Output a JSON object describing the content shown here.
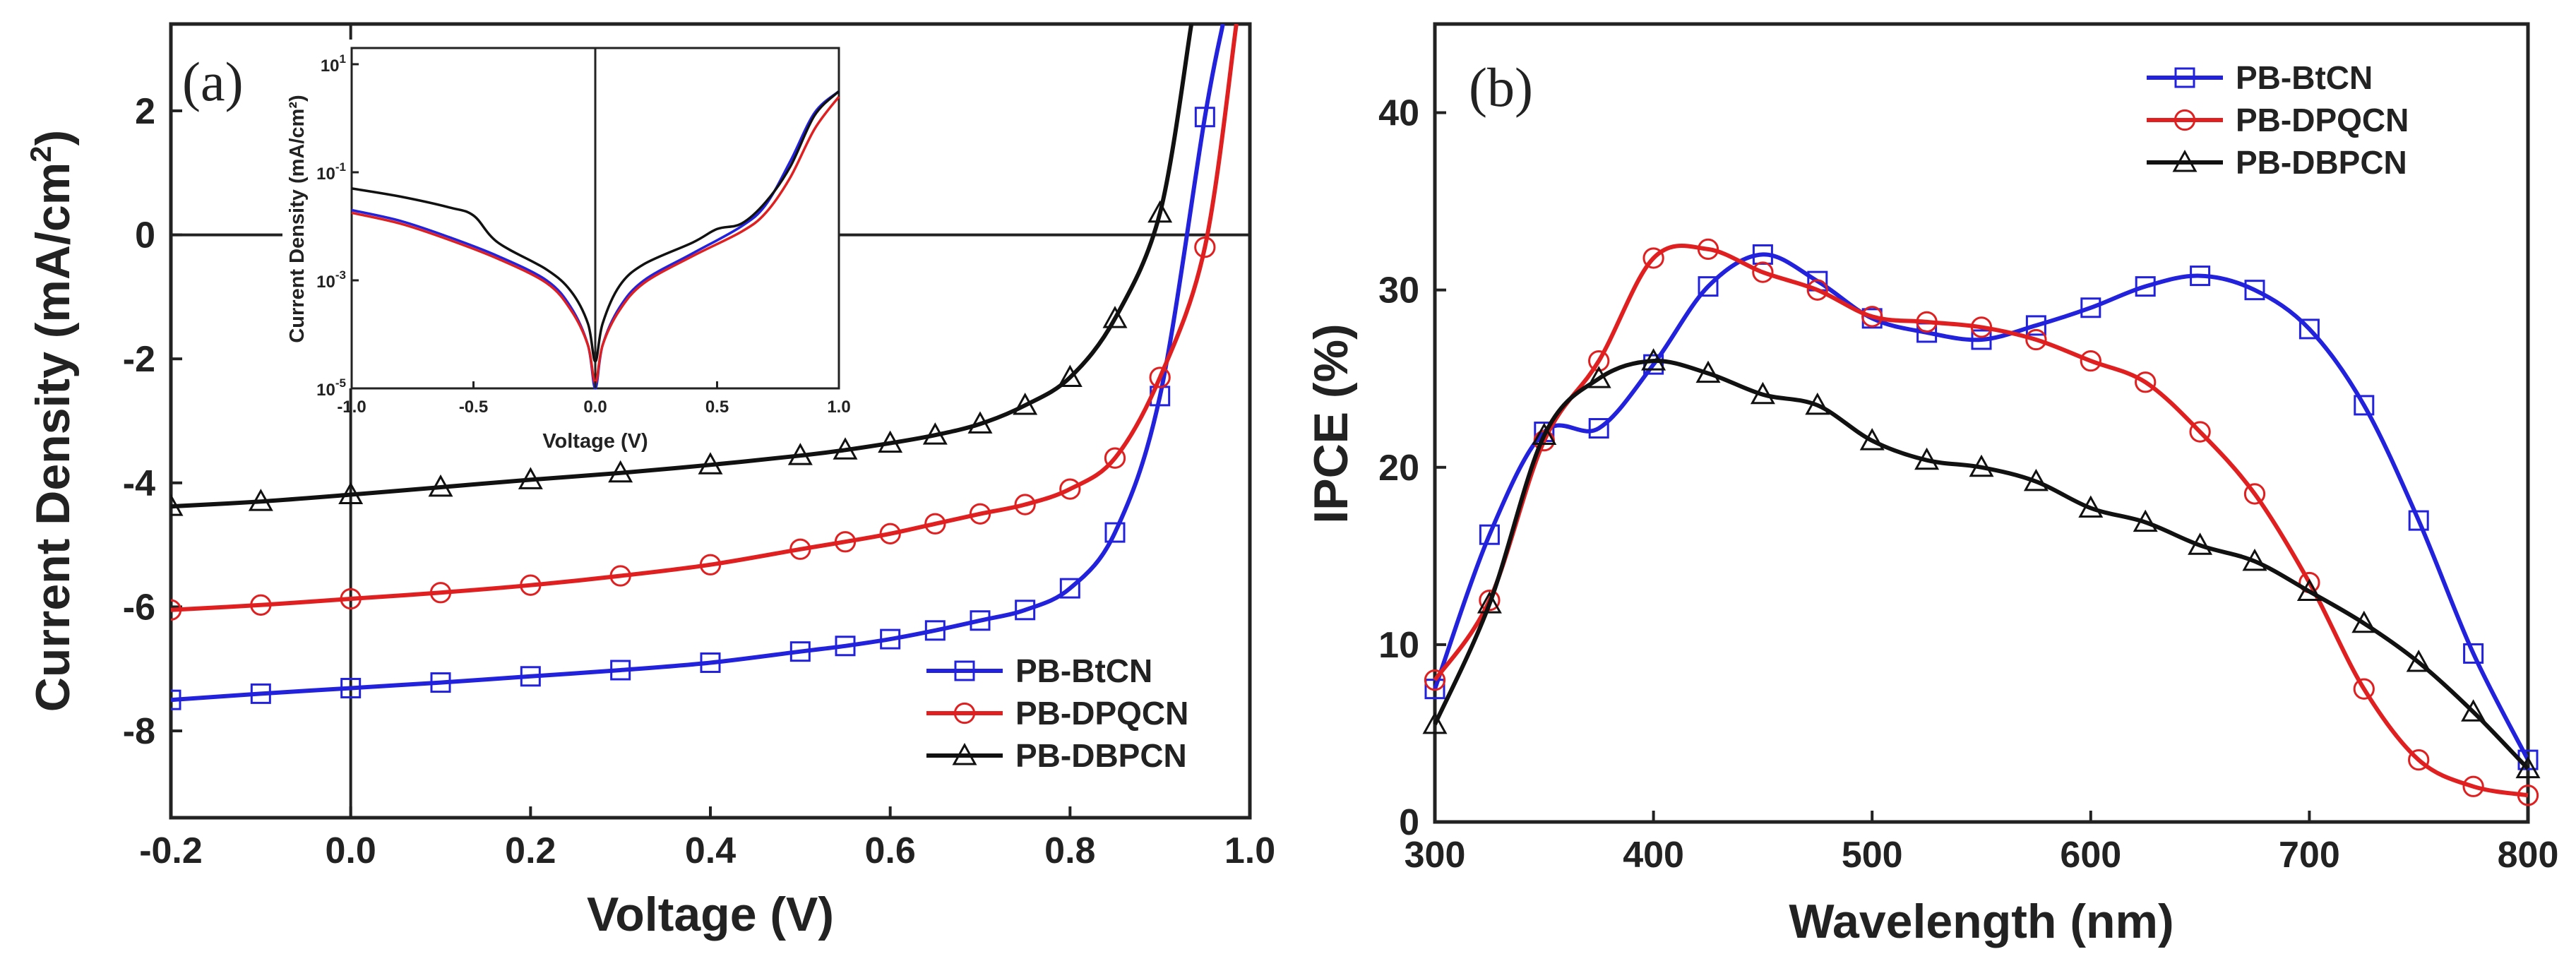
{
  "chart_data": [
    {
      "type": "line",
      "panel_label": "(a)",
      "xlabel": "Voltage (V)",
      "ylabel_main": "Current Density (mA/cm",
      "ylabel_sup": "2",
      "ylabel_end": ")",
      "xlim": [
        -0.2,
        1.0
      ],
      "ylim": [
        -9.4,
        3.4
      ],
      "xticks": [
        -0.2,
        0.0,
        0.2,
        0.4,
        0.6,
        0.8,
        1.0
      ],
      "xtick_labels": [
        "-0.2",
        "0.0",
        "0.2",
        "0.4",
        "0.6",
        "0.8",
        "1.0"
      ],
      "yticks": [
        -8,
        -6,
        -4,
        -2,
        0,
        2
      ],
      "ytick_labels": [
        "-8",
        "-6",
        "-4",
        "-2",
        "0",
        "2"
      ],
      "legend_position": "bottom-right",
      "series": [
        {
          "name": "PB-BtCN",
          "color": "#2222dd",
          "marker": "square",
          "x": [
            -0.2,
            -0.1,
            0,
            0.1,
            0.2,
            0.3,
            0.4,
            0.5,
            0.55,
            0.6,
            0.65,
            0.7,
            0.75,
            0.8,
            0.85,
            0.9,
            0.95,
            0.97
          ],
          "y": [
            -7.5,
            -7.4,
            -7.31,
            -7.22,
            -7.12,
            -7.02,
            -6.9,
            -6.72,
            -6.63,
            -6.52,
            -6.38,
            -6.22,
            -6.05,
            -5.7,
            -4.8,
            -2.6,
            1.9,
            3.4
          ]
        },
        {
          "name": "PB-DPQCN",
          "color": "#e02020",
          "marker": "circle",
          "x": [
            -0.2,
            -0.1,
            0,
            0.1,
            0.2,
            0.3,
            0.4,
            0.5,
            0.55,
            0.6,
            0.65,
            0.7,
            0.75,
            0.8,
            0.85,
            0.9,
            0.95,
            0.985
          ],
          "y": [
            -6.05,
            -5.97,
            -5.87,
            -5.77,
            -5.65,
            -5.5,
            -5.32,
            -5.07,
            -4.95,
            -4.82,
            -4.66,
            -4.5,
            -4.35,
            -4.1,
            -3.6,
            -2.3,
            -0.2,
            3.4
          ]
        },
        {
          "name": "PB-DBPCN",
          "color": "#111111",
          "marker": "triangle",
          "x": [
            -0.2,
            -0.1,
            0,
            0.1,
            0.2,
            0.3,
            0.4,
            0.5,
            0.55,
            0.6,
            0.65,
            0.7,
            0.75,
            0.8,
            0.85,
            0.9,
            0.935
          ],
          "y": [
            -4.38,
            -4.3,
            -4.19,
            -4.07,
            -3.95,
            -3.84,
            -3.71,
            -3.56,
            -3.47,
            -3.36,
            -3.23,
            -3.05,
            -2.75,
            -2.3,
            -1.35,
            0.35,
            3.4
          ]
        }
      ],
      "inset": {
        "type": "line",
        "xlabel": "Voltage (V)",
        "ylabel": "Current Density (mA/cm²)",
        "yscale": "log",
        "xlim": [
          -1.0,
          1.0
        ],
        "ylim_exp": [
          -5,
          1.3
        ],
        "xtick_labels": [
          "-1.0",
          "-0.5",
          "0.0",
          "0.5",
          "1.0"
        ],
        "ytick_labels": [
          {
            "base": "10",
            "exp": "1"
          },
          {
            "base": "10",
            "exp": "-1"
          },
          {
            "base": "10",
            "exp": "-3"
          },
          {
            "base": "10",
            "exp": "-5"
          }
        ],
        "ytick_exps": [
          1,
          -1,
          -3,
          -5
        ],
        "series": [
          {
            "name": "PB-BtCN",
            "color": "#2222dd",
            "x": [
              -1.0,
              -0.8,
              -0.6,
              -0.4,
              -0.2,
              -0.1,
              -0.03,
              0,
              0.03,
              0.1,
              0.2,
              0.4,
              0.6,
              0.7,
              0.8,
              0.9,
              1.0
            ],
            "log10y": [
              -1.7,
              -1.9,
              -2.2,
              -2.55,
              -3.0,
              -3.5,
              -4.2,
              -5.0,
              -4.2,
              -3.5,
              -3.0,
              -2.5,
              -2.0,
              -1.6,
              -0.8,
              0.1,
              0.5
            ]
          },
          {
            "name": "PB-DPQCN",
            "color": "#e02020",
            "x": [
              -1.0,
              -0.8,
              -0.6,
              -0.4,
              -0.2,
              -0.1,
              -0.03,
              0,
              0.03,
              0.1,
              0.2,
              0.4,
              0.6,
              0.7,
              0.8,
              0.9,
              1.0
            ],
            "log10y": [
              -1.75,
              -1.95,
              -2.25,
              -2.6,
              -3.05,
              -3.55,
              -4.2,
              -4.9,
              -4.2,
              -3.55,
              -3.05,
              -2.55,
              -2.1,
              -1.75,
              -1.1,
              -0.2,
              0.4
            ]
          },
          {
            "name": "PB-DBPCN",
            "color": "#111111",
            "x": [
              -1.0,
              -0.8,
              -0.6,
              -0.5,
              -0.4,
              -0.2,
              -0.1,
              -0.03,
              0,
              0.03,
              0.1,
              0.2,
              0.4,
              0.5,
              0.6,
              0.7,
              0.8,
              0.9,
              1.0
            ],
            "log10y": [
              -1.3,
              -1.45,
              -1.65,
              -1.8,
              -2.3,
              -2.8,
              -3.2,
              -3.8,
              -4.5,
              -3.8,
              -3.1,
              -2.7,
              -2.3,
              -2.05,
              -1.95,
              -1.55,
              -0.9,
              0.05,
              0.5
            ]
          }
        ]
      }
    },
    {
      "type": "line",
      "panel_label": "(b)",
      "xlabel": "Wavelength (nm)",
      "ylabel": "IPCE (%)",
      "xlim": [
        300,
        800
      ],
      "ylim": [
        0,
        45
      ],
      "xticks": [
        300,
        400,
        500,
        600,
        700,
        800
      ],
      "xtick_labels": [
        "300",
        "400",
        "500",
        "600",
        "700",
        "800"
      ],
      "yticks": [
        0,
        10,
        20,
        30,
        40
      ],
      "ytick_labels": [
        "0",
        "10",
        "20",
        "30",
        "40"
      ],
      "legend_position": "top-right",
      "series": [
        {
          "name": "PB-BtCN",
          "color": "#2222dd",
          "marker": "square",
          "x": [
            300,
            325,
            350,
            375,
            400,
            425,
            450,
            475,
            500,
            525,
            550,
            575,
            600,
            625,
            650,
            675,
            700,
            725,
            750,
            775,
            800
          ],
          "y": [
            7.5,
            16.2,
            22.0,
            22.2,
            25.8,
            30.2,
            32.0,
            30.5,
            28.4,
            27.6,
            27.2,
            28.0,
            29.0,
            30.2,
            30.8,
            30.0,
            27.8,
            23.5,
            17.0,
            9.5,
            3.5
          ]
        },
        {
          "name": "PB-DPQCN",
          "color": "#e02020",
          "marker": "circle",
          "x": [
            300,
            325,
            350,
            375,
            400,
            425,
            450,
            475,
            500,
            525,
            550,
            575,
            600,
            625,
            650,
            675,
            700,
            725,
            750,
            775,
            800
          ],
          "y": [
            8.0,
            12.5,
            21.5,
            26.0,
            31.8,
            32.3,
            31.0,
            30.0,
            28.5,
            28.2,
            27.9,
            27.2,
            26.0,
            24.8,
            22.0,
            18.5,
            13.5,
            7.5,
            3.5,
            2.0,
            1.5
          ]
        },
        {
          "name": "PB-DBPCN",
          "color": "#111111",
          "marker": "triangle",
          "x": [
            300,
            325,
            350,
            375,
            400,
            425,
            450,
            475,
            500,
            525,
            550,
            575,
            600,
            625,
            650,
            675,
            700,
            725,
            750,
            775,
            800
          ],
          "y": [
            5.5,
            12.3,
            21.8,
            25.0,
            26.0,
            25.3,
            24.1,
            23.5,
            21.5,
            20.4,
            20.0,
            19.2,
            17.7,
            16.9,
            15.6,
            14.7,
            13.0,
            11.2,
            9.0,
            6.2,
            3.0
          ]
        }
      ]
    }
  ]
}
